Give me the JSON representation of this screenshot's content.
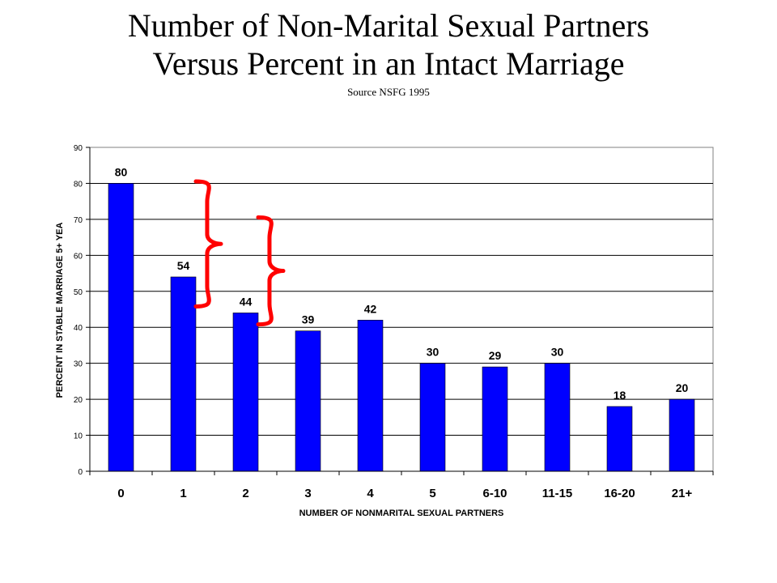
{
  "slide": {
    "title_line1": "Number of Non-Marital Sexual Partners",
    "title_line2": "Versus Percent in an Intact Marriage",
    "source": "Source NSFG 1995"
  },
  "chart_data": {
    "type": "bar",
    "categories": [
      "0",
      "1",
      "2",
      "3",
      "4",
      "5",
      "6-10",
      "11-15",
      "16-20",
      "21+"
    ],
    "values": [
      80,
      54,
      44,
      39,
      42,
      30,
      29,
      30,
      18,
      20
    ],
    "data_labels": [
      "80",
      "54",
      "44",
      "39",
      "42",
      "30",
      "29",
      "30",
      "18",
      "20"
    ],
    "title": "",
    "xlabel": "NUMBER OF NONMARITAL SEXUAL PARTNERS",
    "ylabel": "PERCENT IN STABLE MARRIAGE 5+ YEA",
    "ylim": [
      0,
      90
    ],
    "yticks": [
      0,
      10,
      20,
      30,
      40,
      50,
      60,
      70,
      80,
      90
    ],
    "grid": true,
    "legend": "none",
    "colors": {
      "bar": "#0000ff",
      "plot_background": "#ffffff",
      "annotation_brace": "#ff0000",
      "gridline": "#000000"
    },
    "annotations": [
      {
        "type": "brace",
        "spans_categories": [
          "1",
          "2"
        ]
      },
      {
        "type": "brace",
        "spans_categories": [
          "2",
          "3"
        ]
      }
    ]
  }
}
